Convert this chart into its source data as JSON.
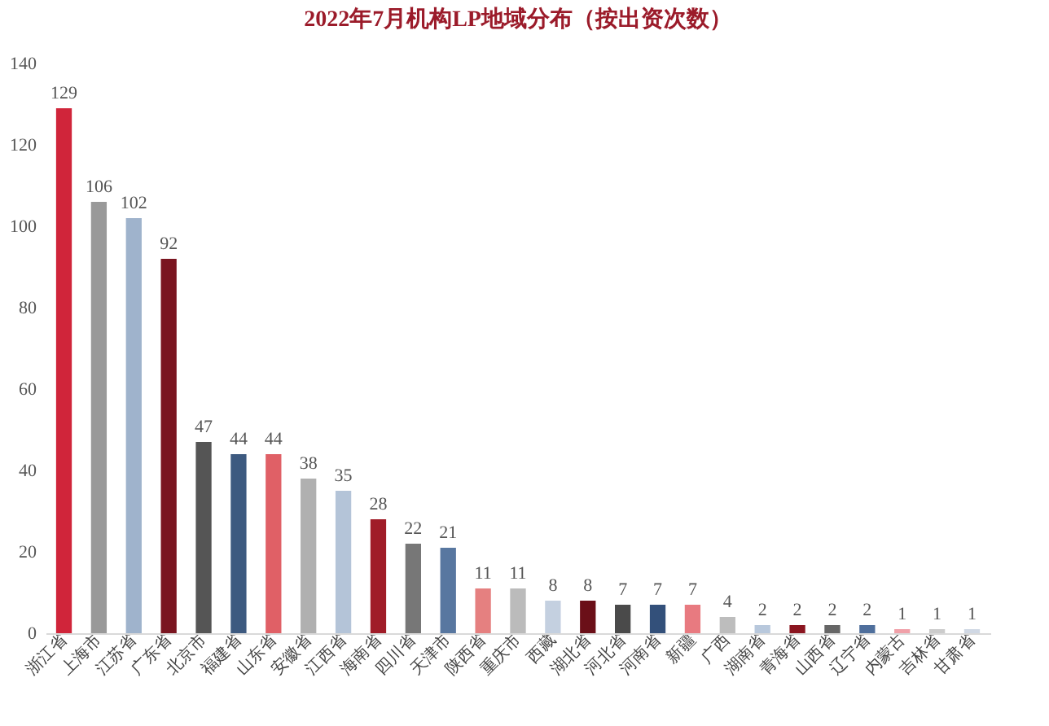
{
  "chart_data": {
    "type": "bar",
    "title": "2022年7月机构LP地域分布（按出资次数）",
    "categories": [
      "浙江省",
      "上海市",
      "江苏省",
      "广东省",
      "北京市",
      "福建省",
      "山东省",
      "安徽省",
      "江西省",
      "海南省",
      "四川省",
      "天津市",
      "陕西省",
      "重庆市",
      "西藏",
      "湖北省",
      "河北省",
      "河南省",
      "新疆",
      "广西",
      "湖南省",
      "青海省",
      "山西省",
      "辽宁省",
      "内蒙古",
      "吉林省",
      "甘肃省"
    ],
    "values": [
      129,
      106,
      102,
      92,
      47,
      44,
      44,
      38,
      35,
      28,
      22,
      21,
      11,
      11,
      8,
      8,
      7,
      7,
      7,
      4,
      2,
      2,
      2,
      2,
      1,
      1,
      1
    ],
    "colors": [
      "#d0253a",
      "#999999",
      "#9fb3cc",
      "#7a1520",
      "#555555",
      "#3d5a80",
      "#e06066",
      "#b0b0b0",
      "#b4c4d8",
      "#a01c28",
      "#777777",
      "#5877a0",
      "#e58080",
      "#bbbbbb",
      "#c4d0e0",
      "#6b0f18",
      "#4a4a4a",
      "#33507a",
      "#e87a80",
      "#bdbdbd",
      "#b8c8dc",
      "#8b1520",
      "#666666",
      "#4f6f9c",
      "#f0a0a8",
      "#cccccc",
      "#d0d8e4"
    ],
    "ylim": [
      0,
      140
    ],
    "yticks": [
      0,
      20,
      40,
      60,
      80,
      100,
      120,
      140
    ],
    "data_labels": true,
    "grid": false,
    "legend": false
  }
}
